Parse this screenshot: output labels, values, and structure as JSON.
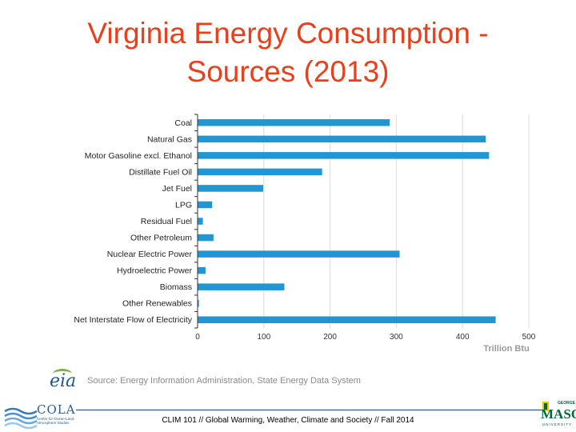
{
  "title": {
    "line1": "Virginia Energy Consumption -",
    "line2": "Sources (2013)"
  },
  "chart_data": {
    "type": "bar",
    "orientation": "horizontal",
    "categories": [
      "Coal",
      "Natural Gas",
      "Motor Gasoline excl. Ethanol",
      "Distillate Fuel Oil",
      "Jet Fuel",
      "LPG",
      "Residual Fuel",
      "Other Petroleum",
      "Nuclear Electric Power",
      "Hydroelectric Power",
      "Biomass",
      "Other Renewables",
      "Net Interstate Flow of Electricity"
    ],
    "values": [
      290,
      435,
      440,
      188,
      99,
      22,
      8,
      24,
      305,
      12,
      131,
      2,
      450
    ],
    "xlabel": "Trillion Btu",
    "ylabel": "",
    "xlim": [
      0,
      500
    ],
    "xticks": [
      0,
      100,
      200,
      300,
      400,
      500
    ],
    "grid": true,
    "bar_color": "#2196d3"
  },
  "source": {
    "logo_text": "eia",
    "text": "Source: Energy Information Administration, State Energy Data System"
  },
  "footer": {
    "text": "CLIM 101 // Global Warming, Weather, Climate and Society // Fall 2014",
    "left_logo_name": "COLA",
    "left_logo_sub": "Center for Ocean-Land-Atmosphere Studies",
    "right_logo_top": "GEORGE",
    "right_logo_name": "MASON",
    "right_logo_bottom": "UNIVERSITY"
  }
}
